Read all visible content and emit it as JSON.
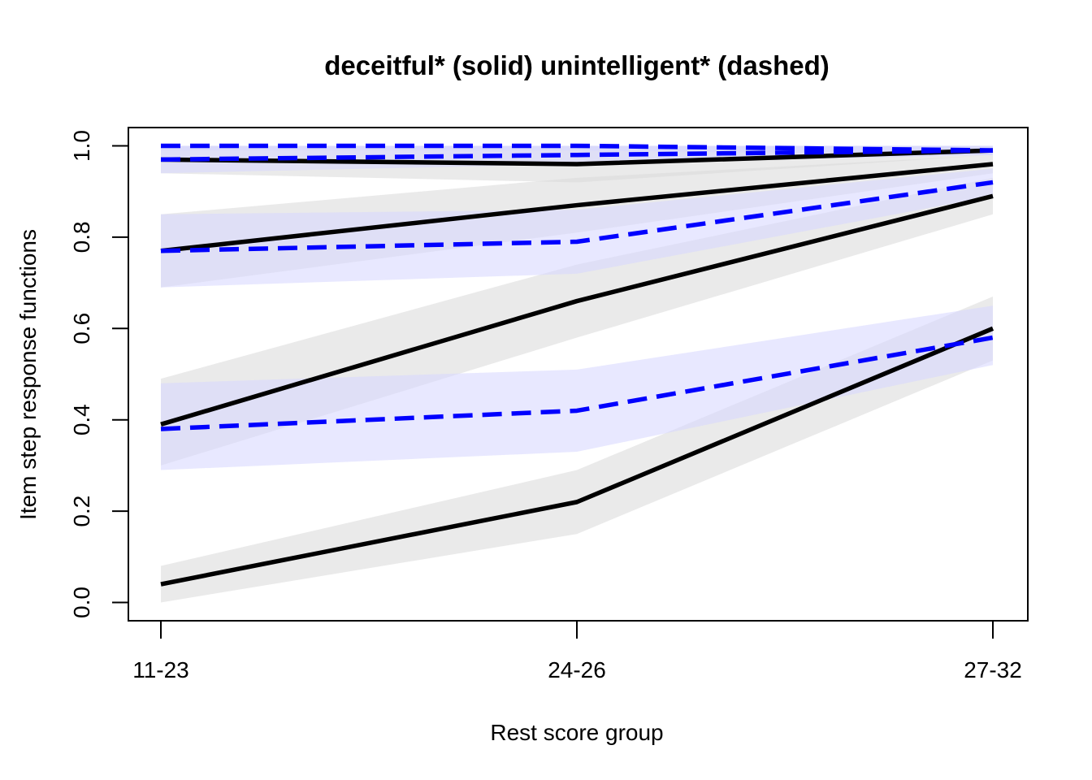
{
  "chart_data": {
    "type": "line",
    "title": "deceitful* (solid) unintelligent* (dashed)",
    "xlabel": "Rest score group",
    "ylabel": "Item step response functions",
    "categories": [
      "11-23",
      "24-26",
      "27-32"
    ],
    "ylim": [
      -0.04,
      1.04
    ],
    "yticks": [
      0.0,
      0.2,
      0.4,
      0.6,
      0.8,
      1.0
    ],
    "ytick_labels": [
      "0.0",
      "0.2",
      "0.4",
      "0.6",
      "0.8",
      "1.0"
    ],
    "grid": false,
    "legend": "none",
    "series": [
      {
        "group": "deceitful",
        "style": "solid",
        "color": "#000000",
        "band_color": "#d9d9d9",
        "values": [
          0.04,
          0.22,
          0.6
        ],
        "lower": [
          0.0,
          0.15,
          0.53
        ],
        "upper": [
          0.08,
          0.29,
          0.67
        ]
      },
      {
        "group": "deceitful",
        "style": "solid",
        "color": "#000000",
        "band_color": "#d9d9d9",
        "values": [
          0.39,
          0.66,
          0.89
        ],
        "lower": [
          0.3,
          0.58,
          0.85
        ],
        "upper": [
          0.49,
          0.74,
          0.93
        ]
      },
      {
        "group": "deceitful",
        "style": "solid",
        "color": "#000000",
        "band_color": "#d9d9d9",
        "values": [
          0.77,
          0.87,
          0.96
        ],
        "lower": [
          0.69,
          0.81,
          0.94
        ],
        "upper": [
          0.85,
          0.93,
          0.98
        ]
      },
      {
        "group": "deceitful",
        "style": "solid",
        "color": "#000000",
        "band_color": "#d9d9d9",
        "values": [
          0.97,
          0.96,
          0.99
        ],
        "lower": [
          0.94,
          0.92,
          0.98
        ],
        "upper": [
          1.0,
          1.0,
          1.0
        ]
      },
      {
        "group": "unintelligent",
        "style": "dashed",
        "color": "#0000ff",
        "band_color": "#d6d6ff",
        "values": [
          0.38,
          0.42,
          0.58
        ],
        "lower": [
          0.29,
          0.33,
          0.52
        ],
        "upper": [
          0.48,
          0.51,
          0.65
        ]
      },
      {
        "group": "unintelligent",
        "style": "dashed",
        "color": "#0000ff",
        "band_color": "#d6d6ff",
        "values": [
          0.77,
          0.79,
          0.92
        ],
        "lower": [
          0.69,
          0.72,
          0.89
        ],
        "upper": [
          0.85,
          0.86,
          0.95
        ]
      },
      {
        "group": "unintelligent",
        "style": "dashed",
        "color": "#0000ff",
        "band_color": "#d6d6ff",
        "values": [
          0.97,
          0.98,
          0.99
        ],
        "lower": [
          0.94,
          0.96,
          0.98
        ],
        "upper": [
          1.0,
          1.0,
          1.0
        ]
      },
      {
        "group": "unintelligent",
        "style": "dashed",
        "color": "#0000ff",
        "band_color": "#d6d6ff",
        "values": [
          1.0,
          1.0,
          0.99
        ],
        "lower": [
          0.99,
          0.99,
          0.98
        ],
        "upper": [
          1.0,
          1.0,
          1.0
        ]
      }
    ]
  }
}
